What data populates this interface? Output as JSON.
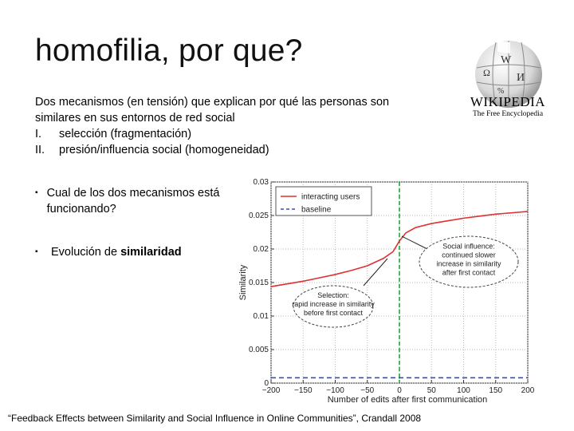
{
  "slide": {
    "title": "homofilia, por que?",
    "intro_line1": "Dos mecanismos (en tensión) que explican por qué las personas son",
    "intro_line2": "similares en sus entornos de red social",
    "items": [
      {
        "num": "I.",
        "text": "selección (fragmentación)"
      },
      {
        "num": "II.",
        "text": "presión/influencia social (homogeneidad)"
      }
    ],
    "bullets": [
      {
        "mark": "▪",
        "text": "Cual de los dos mecanismos está funcionando?"
      },
      {
        "mark": "▪",
        "text_prefix": "Evolución de ",
        "text_bold": "similaridad"
      }
    ],
    "citation": "“Feedback Effects between Similarity and Social Influence in Online Communities”, Crandall 2008"
  },
  "logo": {
    "wordmark": "WIKIPEDIA",
    "tagline": "The Free Encyclopedia",
    "puzzle_glyphs": [
      "W",
      "Ω",
      "И",
      "%"
    ]
  },
  "chart_data": {
    "type": "line",
    "xlabel": "Number of edits after first communication",
    "ylabel": "Similarity",
    "xlim": [
      -200,
      200
    ],
    "ylim": [
      0,
      0.03
    ],
    "xticks": [
      -200,
      -150,
      -100,
      -50,
      0,
      50,
      100,
      150,
      200
    ],
    "yticks": [
      0,
      0.005,
      0.01,
      0.015,
      0.02,
      0.025,
      0.03
    ],
    "ytick_labels": [
      "0",
      "0.005",
      "0.01",
      "0.015",
      "0.02",
      "0.025",
      "0.03"
    ],
    "legend_position": "top-left",
    "series": [
      {
        "name": "interacting users",
        "color": "#e03030",
        "style": "solid",
        "x": [
          -200,
          -175,
          -150,
          -125,
          -100,
          -75,
          -50,
          -25,
          -10,
          0,
          10,
          25,
          50,
          75,
          100,
          125,
          150,
          175,
          200
        ],
        "y": [
          0.0144,
          0.0148,
          0.0152,
          0.0157,
          0.0162,
          0.0168,
          0.0175,
          0.0186,
          0.0196,
          0.0212,
          0.0224,
          0.0232,
          0.0238,
          0.0242,
          0.0246,
          0.0249,
          0.0252,
          0.0254,
          0.0256
        ]
      },
      {
        "name": "baseline",
        "color": "#3050c0",
        "style": "dashed",
        "x": [
          -200,
          200
        ],
        "y": [
          0.0008,
          0.0008
        ]
      }
    ],
    "annotations": [
      {
        "text": "Social influence: continued slower increase in similarity after first contact"
      },
      {
        "text": "Selection: rapid increase in similarity before first contact"
      }
    ]
  }
}
